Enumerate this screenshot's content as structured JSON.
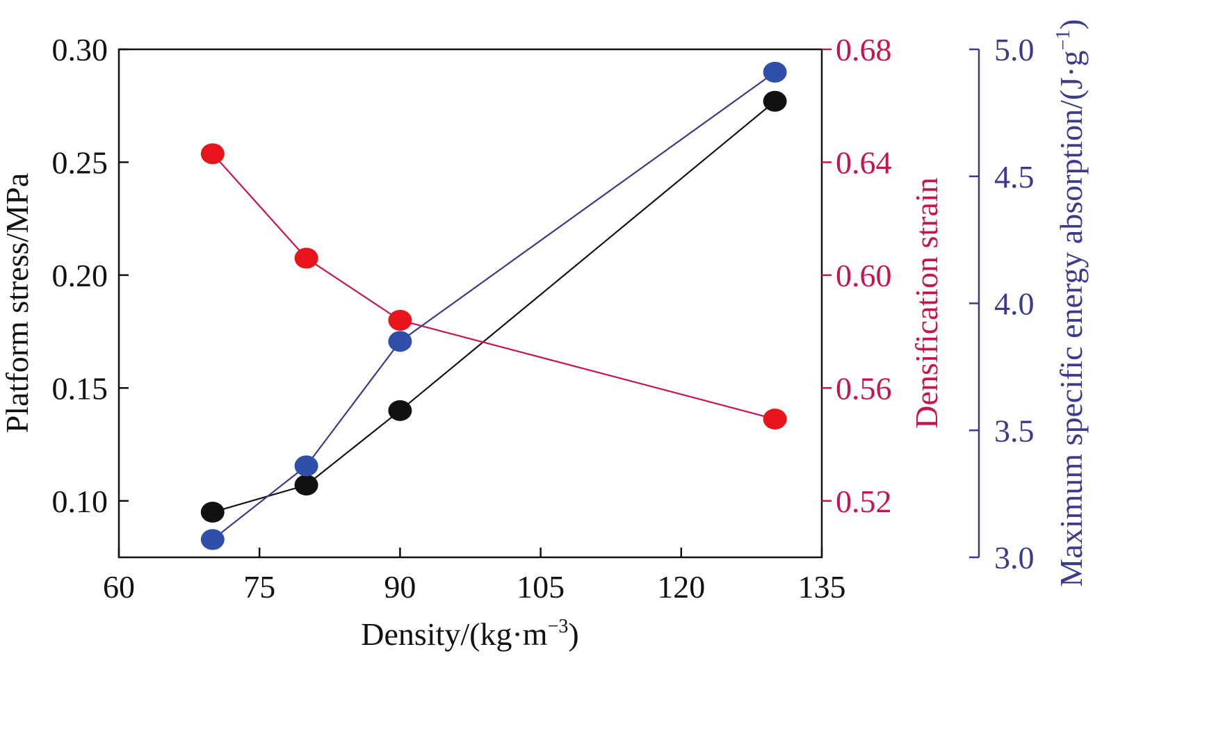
{
  "chart_data": {
    "type": "line",
    "x_axis": {
      "label": "Density/(kg·m",
      "label_sup": "−3",
      "label_end": ")",
      "ticks": [
        60,
        75,
        90,
        105,
        120,
        135
      ],
      "tick_labels": [
        "60",
        "75",
        "90",
        "105",
        "120",
        "135"
      ],
      "range": [
        60,
        135
      ]
    },
    "y_left": {
      "label": "Platform stress/MPa",
      "ticks": [
        0.1,
        0.15,
        0.2,
        0.25,
        0.3
      ],
      "tick_labels": [
        "0.10",
        "0.15",
        "0.20",
        "0.25",
        "0.30"
      ],
      "range": [
        0.075,
        0.3
      ],
      "color": "#111111"
    },
    "y_right1": {
      "label": "Densification strain",
      "ticks": [
        0.52,
        0.56,
        0.6,
        0.64,
        0.68
      ],
      "tick_labels": [
        "0.52",
        "0.56",
        "0.60",
        "0.64",
        "0.68"
      ],
      "range": [
        0.5,
        0.68
      ],
      "color": "#c8144b"
    },
    "y_right2": {
      "label": "Maximum specific energy absorption/(J·g",
      "label_sup": "−1",
      "label_end": ")",
      "ticks": [
        3.0,
        3.5,
        4.0,
        4.5,
        5.0
      ],
      "tick_labels": [
        "3.0",
        "3.5",
        "4.0",
        "4.5",
        "5.0"
      ],
      "range": [
        3.0,
        5.0
      ],
      "color": "#3c3a8a"
    },
    "x": [
      70,
      80,
      90,
      130
    ],
    "series": [
      {
        "axis": "y_left",
        "values": [
          0.095,
          0.107,
          0.14,
          0.277
        ],
        "marker": "#111111",
        "line": "#111111"
      },
      {
        "axis": "y_right1",
        "values": [
          0.643,
          0.606,
          0.584,
          0.549
        ],
        "marker": "#e8141c",
        "line": "#c8144b"
      },
      {
        "axis": "y_right2",
        "values": [
          3.07,
          3.36,
          3.85,
          4.91
        ],
        "marker": "#2f4fa8",
        "line": "#3c3a8a"
      }
    ],
    "grid": false
  }
}
